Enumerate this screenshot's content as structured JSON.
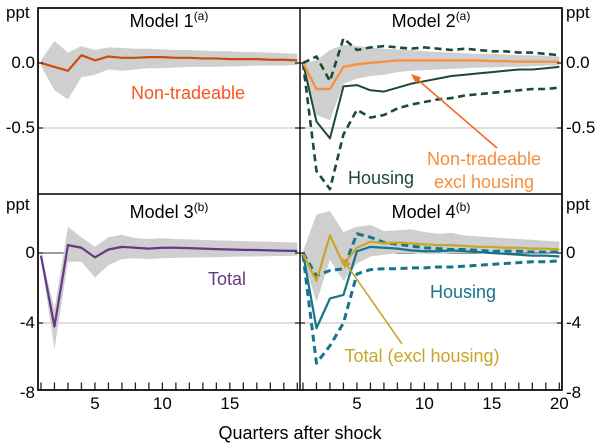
{
  "figure": {
    "description": "Four-panel impulse response figure",
    "background": "#ffffff"
  },
  "chart_data": {
    "type": "line",
    "xlabel": "Quarters after shock",
    "unit_label": "ppt",
    "x": [
      1,
      2,
      3,
      4,
      5,
      6,
      7,
      8,
      9,
      10,
      11,
      12,
      13,
      14,
      15,
      16,
      17,
      18,
      19,
      20
    ],
    "x_ticks": {
      "left": {
        "values": [
          5,
          10,
          15
        ],
        "labels": [
          "5",
          "10",
          "15"
        ]
      },
      "right": {
        "values": [
          5,
          10,
          15,
          20
        ],
        "labels": [
          "5",
          "10",
          "15",
          "20"
        ]
      }
    },
    "rows": {
      "top": {
        "ylim": [
          -1.0,
          0.423
        ],
        "yticks": [
          {
            "value": 0,
            "label": "0.0"
          },
          {
            "value": -0.5,
            "label": "-0.5"
          }
        ]
      },
      "bottom": {
        "ylim": [
          -7.829,
          3.314
        ],
        "yticks": [
          {
            "value": 0,
            "label": "0"
          },
          {
            "value": -4,
            "label": "-4"
          },
          {
            "value": -8,
            "label": "-8"
          }
        ]
      }
    },
    "grid_zero_line_color": "#3a3a3a",
    "grid_minor_line_color": "#bdbdbd",
    "band_color": "#cfcfcf",
    "panels": [
      {
        "title": "Model 1",
        "title_sup": "(a)",
        "row": "top",
        "col": "left",
        "band": {
          "color": "#cfcfcf",
          "upper": [
            0.02,
            0.17,
            0.08,
            0.13,
            0.1,
            0.12,
            0.115,
            0.11,
            0.11,
            0.105,
            0.1,
            0.1,
            0.095,
            0.09,
            0.09,
            0.085,
            0.085,
            0.08,
            0.075,
            0.07
          ],
          "lower": [
            -0.02,
            -0.21,
            -0.28,
            -0.11,
            -0.09,
            -0.05,
            -0.06,
            -0.05,
            -0.04,
            -0.04,
            -0.035,
            -0.03,
            -0.03,
            -0.03,
            -0.025,
            -0.025,
            -0.02,
            -0.02,
            -0.02,
            -0.015
          ]
        },
        "series": [
          {
            "name": "Non-tradeable",
            "color": "#c94d0f",
            "dash": false,
            "width": 2.2,
            "values": [
              0,
              -0.03,
              -0.06,
              0.06,
              0.02,
              0.05,
              0.04,
              0.04,
              0.045,
              0.045,
              0.04,
              0.04,
              0.035,
              0.035,
              0.03,
              0.03,
              0.03,
              0.025,
              0.025,
              0.02
            ]
          }
        ],
        "annotations": [
          {
            "lines": [
              "Non-tradeable"
            ],
            "color": "#f5561b"
          }
        ],
        "arrow_color": null
      },
      {
        "title": "Model 2",
        "title_sup": "(a)",
        "row": "top",
        "col": "right",
        "band": {
          "color": "#cfcfcf",
          "upper": [
            0,
            0.02,
            0.1,
            0.14,
            0.13,
            0.12,
            0.11,
            0.105,
            0.1,
            0.09,
            0.085,
            0.08,
            0.075,
            0.07,
            0.07,
            0.065,
            0.06,
            0.06,
            0.055,
            0.05
          ],
          "lower": [
            0,
            -0.4,
            -0.44,
            -0.16,
            -0.12,
            -0.1,
            -0.09,
            -0.07,
            -0.06,
            -0.055,
            -0.05,
            -0.045,
            -0.04,
            -0.035,
            -0.035,
            -0.03,
            -0.03,
            -0.025,
            -0.02,
            -0.02
          ]
        },
        "series": [
          {
            "name": "Housing upper bound",
            "color": "#1d4a32",
            "dash": true,
            "width": 2.6,
            "values": [
              0,
              0.05,
              -0.14,
              0.19,
              0.1,
              0.12,
              0.13,
              0.12,
              0.11,
              0.12,
              0.11,
              0.1,
              0.11,
              0.1,
              0.09,
              0.09,
              0.08,
              0.08,
              0.07,
              0.06
            ]
          },
          {
            "name": "Housing lower bound",
            "color": "#1d4a32",
            "dash": true,
            "width": 2.6,
            "values": [
              0,
              -0.83,
              -0.97,
              -0.55,
              -0.36,
              -0.42,
              -0.4,
              -0.35,
              -0.32,
              -0.3,
              -0.28,
              -0.27,
              -0.25,
              -0.24,
              -0.23,
              -0.22,
              -0.21,
              -0.2,
              -0.2,
              -0.19
            ]
          },
          {
            "name": "Housing",
            "color": "#1d4a32",
            "dash": false,
            "width": 2,
            "values": [
              0,
              -0.45,
              -0.58,
              -0.18,
              -0.17,
              -0.21,
              -0.22,
              -0.19,
              -0.16,
              -0.14,
              -0.12,
              -0.1,
              -0.09,
              -0.08,
              -0.07,
              -0.06,
              -0.05,
              -0.05,
              -0.04,
              -0.03
            ]
          },
          {
            "name": "Non-tradeable excl housing",
            "color": "#f79140",
            "dash": false,
            "width": 2.4,
            "values": [
              0,
              -0.2,
              -0.2,
              -0.03,
              -0.01,
              0,
              0.01,
              0.02,
              0.02,
              0.02,
              0.02,
              0.02,
              0.02,
              0.02,
              0.015,
              0.015,
              0.01,
              0.01,
              0.01,
              0.01
            ]
          }
        ],
        "annotations": [
          {
            "lines": [
              "Housing"
            ],
            "color": "#1d4a32"
          },
          {
            "lines": [
              "Non-tradeable",
              "excl housing"
            ],
            "color": "#f78e3d"
          }
        ],
        "arrow_color": "#f2691f"
      },
      {
        "title": "Model 3",
        "title_sup": "(b)",
        "row": "bottom",
        "col": "left",
        "band": {
          "color": "#cfcfcf",
          "upper": [
            0,
            -3.2,
            1.5,
            0.9,
            0.35,
            0.9,
            1.05,
            0.85,
            0.8,
            0.85,
            0.8,
            0.78,
            0.75,
            0.72,
            0.7,
            0.68,
            0.66,
            0.64,
            0.62,
            0.6
          ],
          "lower": [
            -0.3,
            -5.5,
            -0.5,
            -0.5,
            -1.4,
            -0.7,
            -0.35,
            -0.3,
            -0.35,
            -0.3,
            -0.28,
            -0.26,
            -0.25,
            -0.24,
            -0.22,
            -0.2,
            -0.2,
            -0.18,
            -0.17,
            -0.16
          ]
        },
        "series": [
          {
            "name": "Total",
            "color": "#643a85",
            "dash": false,
            "width": 2.2,
            "values": [
              -0.15,
              -4.2,
              0.45,
              0.3,
              -0.25,
              0.2,
              0.35,
              0.3,
              0.25,
              0.3,
              0.3,
              0.28,
              0.25,
              0.22,
              0.2,
              0.18,
              0.17,
              0.15,
              0.13,
              0.12
            ]
          }
        ],
        "annotations": [
          {
            "lines": [
              "Total"
            ],
            "color": "#643a85"
          }
        ],
        "arrow_color": null
      },
      {
        "title": "Model 4",
        "title_sup": "(b)",
        "row": "bottom",
        "col": "right",
        "band": {
          "color": "#cfcfcf",
          "upper": [
            0.1,
            2.2,
            2.4,
            1.2,
            1.5,
            1.6,
            1.25,
            1.3,
            1.35,
            1.2,
            1.1,
            1.15,
            1.0,
            0.95,
            0.9,
            0.85,
            0.8,
            0.75,
            0.7,
            0.65
          ],
          "lower": [
            -0.3,
            -2.8,
            -0.4,
            -1.6,
            -0.6,
            -0.2,
            -0.1,
            0,
            0,
            -0.05,
            -0.05,
            0,
            0,
            0,
            0,
            0,
            0,
            0.05,
            0.05,
            0.05
          ]
        },
        "series": [
          {
            "name": "Housing upper bound",
            "color": "#15758a",
            "dash": true,
            "width": 3,
            "values": [
              0,
              -1.3,
              -1.0,
              -0.9,
              1.1,
              0.9,
              0.6,
              0.5,
              0.4,
              0.3,
              0.25,
              0.2,
              0.2,
              0.15,
              0.1,
              0.1,
              0.1,
              0.05,
              0.05,
              0.05
            ]
          },
          {
            "name": "Housing lower bound",
            "color": "#15758a",
            "dash": true,
            "width": 3,
            "values": [
              -0.1,
              -6.3,
              -5.3,
              -4.0,
              -1.2,
              -0.95,
              -0.9,
              -0.9,
              -0.85,
              -0.85,
              -0.8,
              -0.8,
              -0.75,
              -0.7,
              -0.65,
              -0.6,
              -0.55,
              -0.5,
              -0.5,
              -0.45
            ]
          },
          {
            "name": "Housing",
            "color": "#15758a",
            "dash": false,
            "width": 2.2,
            "values": [
              0,
              -4.3,
              -2.6,
              -2.4,
              0.1,
              0.35,
              0.3,
              0.25,
              0.15,
              0.1,
              0.1,
              0.15,
              0.1,
              0.05,
              0,
              -0.05,
              -0.1,
              -0.15,
              -0.15,
              -0.2
            ]
          },
          {
            "name": "Total (excl housing)",
            "color": "#c9a52b",
            "dash": false,
            "width": 2.2,
            "values": [
              -0.05,
              -1.6,
              1.0,
              -0.65,
              0.3,
              0.65,
              0.55,
              0.6,
              0.55,
              0.5,
              0.45,
              0.45,
              0.4,
              0.35,
              0.35,
              0.3,
              0.3,
              0.25,
              0.25,
              0.2
            ]
          }
        ],
        "annotations": [
          {
            "lines": [
              "Housing"
            ],
            "color": "#15758a"
          },
          {
            "lines": [
              "Total (excl housing)"
            ],
            "color": "#c9a52b"
          }
        ],
        "arrow_color": "#c9a52b"
      }
    ]
  }
}
